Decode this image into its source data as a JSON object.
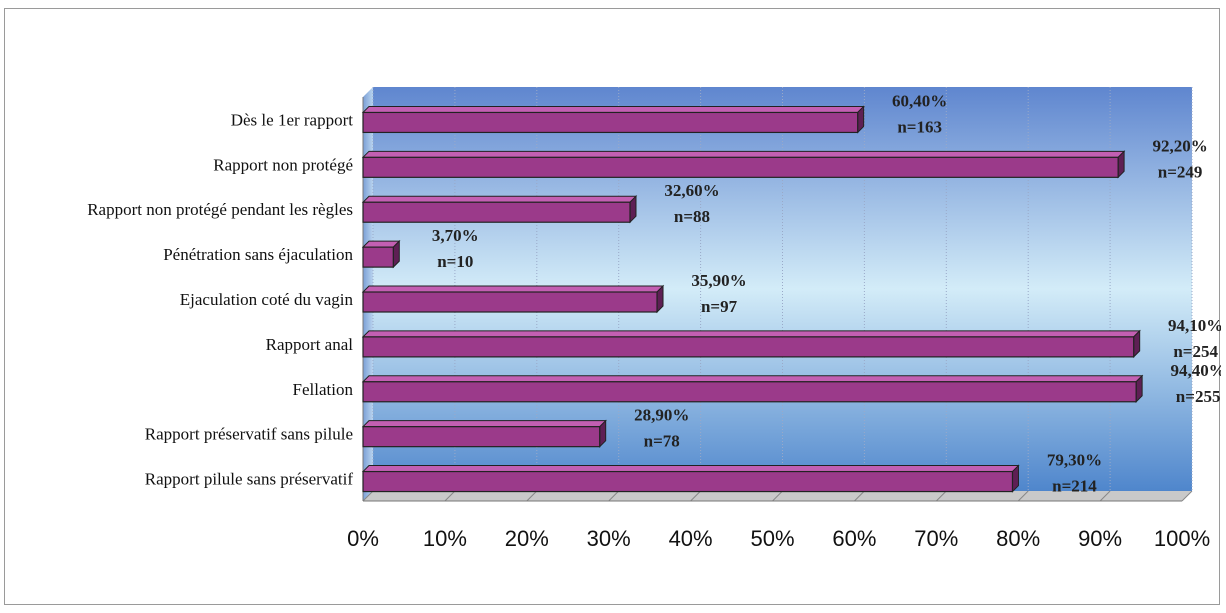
{
  "colors": {
    "bar_face": "#9b3a8a",
    "bar_top": "#c35fb2",
    "bar_side": "#5e1f54",
    "wall_top": "#5f86cf",
    "wall_mid": "#d3ecf8",
    "wall_bottom": "#4f86cc",
    "grid": "#9aa9c8"
  },
  "chart_data": {
    "type": "bar",
    "orientation": "horizontal",
    "categories": [
      "Dès le 1er rapport",
      "Rapport non protégé",
      "Rapport non protégé pendant les règles",
      "Pénétration sans éjaculation",
      "Ejaculation coté du vagin",
      "Rapport anal",
      "Fellation",
      "Rapport préservatif sans pilule",
      "Rapport pilule sans préservatif"
    ],
    "values": [
      60.4,
      92.2,
      32.6,
      3.7,
      35.9,
      94.1,
      94.4,
      28.9,
      79.3
    ],
    "value_labels": [
      "60,40%",
      "92,20%",
      "32,60%",
      "3,70%",
      "35,90%",
      "94,10%",
      "94,40%",
      "28,90%",
      "79,30%"
    ],
    "n_labels": [
      "n=163",
      "n=249",
      "n=88",
      "n=10",
      "n=97",
      "n=254",
      "n=255",
      "n=78",
      "n=214"
    ],
    "xlim": [
      0,
      100
    ],
    "x_ticks": [
      "0%",
      "10%",
      "20%",
      "30%",
      "40%",
      "50%",
      "60%",
      "70%",
      "80%",
      "90%",
      "100%"
    ],
    "grid": true,
    "legend": "none",
    "style": "3d"
  }
}
